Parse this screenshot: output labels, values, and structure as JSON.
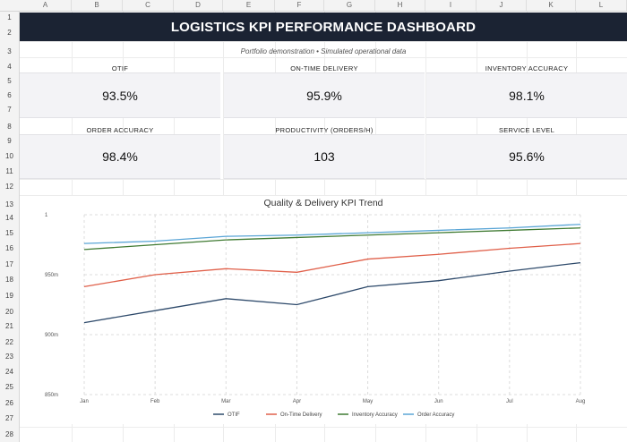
{
  "columns": [
    "A",
    "B",
    "C",
    "D",
    "E",
    "F",
    "G",
    "H",
    "I",
    "J",
    "K",
    "L"
  ],
  "rows": [
    "1",
    "2",
    "3",
    "4",
    "5",
    "6",
    "7",
    "8",
    "9",
    "10",
    "11",
    "12",
    "13",
    "14",
    "15",
    "16",
    "17",
    "18",
    "19",
    "20",
    "21",
    "22",
    "23",
    "24",
    "25",
    "26",
    "27",
    "28"
  ],
  "dashboard": {
    "title": "LOGISTICS KPI PERFORMANCE DASHBOARD",
    "subtitle": "Portfolio demonstration • Simulated operational data"
  },
  "kpis": [
    {
      "label": "OTIF",
      "value": "93.5%"
    },
    {
      "label": "ON-TIME DELIVERY",
      "value": "95.9%"
    },
    {
      "label": "INVENTORY ACCURACY",
      "value": "98.1%"
    },
    {
      "label": "ORDER ACCURACY",
      "value": "98.4%"
    },
    {
      "label": "PRODUCTIVITY (ORDERS/H)",
      "value": "103"
    },
    {
      "label": "SERVICE LEVEL",
      "value": "95.6%"
    }
  ],
  "chart_data": {
    "type": "line",
    "title": "Quality & Delivery KPI Trend",
    "xlabel": "",
    "ylabel": "",
    "categories": [
      "Jan",
      "Feb",
      "Mar",
      "Apr",
      "May",
      "Jun",
      "Jul",
      "Aug"
    ],
    "ylim": [
      0.85,
      1.0
    ],
    "yticks": [
      1.0,
      0.95,
      0.9,
      0.85
    ],
    "ytick_labels": [
      "1",
      "950m",
      "900m",
      "850m"
    ],
    "grid": true,
    "legend": "bottom",
    "series": [
      {
        "name": "OTIF",
        "color": "#2e4a6b",
        "values": [
          0.91,
          0.92,
          0.93,
          0.925,
          0.94,
          0.945,
          0.953,
          0.96
        ]
      },
      {
        "name": "On-Time Delivery",
        "color": "#e0604a",
        "values": [
          0.94,
          0.95,
          0.955,
          0.952,
          0.963,
          0.967,
          0.972,
          0.976
        ]
      },
      {
        "name": "Inventory Accuracy",
        "color": "#3f7a32",
        "values": [
          0.971,
          0.975,
          0.979,
          0.981,
          0.983,
          0.985,
          0.987,
          0.989
        ]
      },
      {
        "name": "Order Accuracy",
        "color": "#5aa5d6",
        "values": [
          0.976,
          0.978,
          0.982,
          0.983,
          0.985,
          0.987,
          0.989,
          0.992
        ]
      }
    ]
  }
}
